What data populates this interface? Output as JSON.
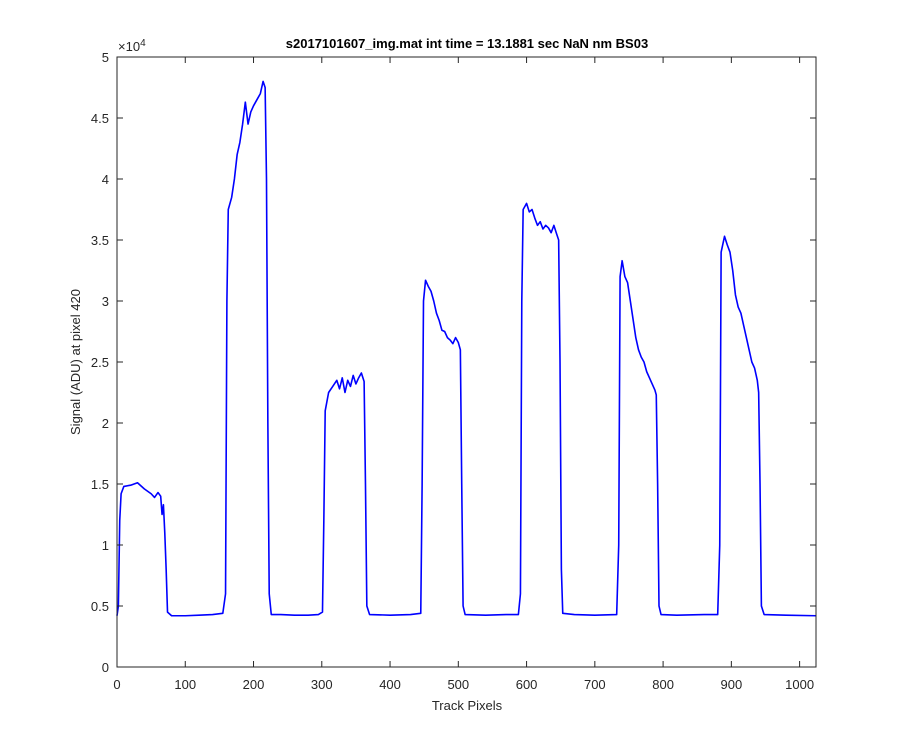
{
  "chart_data": {
    "type": "line",
    "title": "s2017101607_img.mat int time = 13.1881 sec  NaN nm BS03",
    "xlabel": "Track Pixels",
    "ylabel": "Signal (ADU) at pixel 420",
    "xlim": [
      0,
      1024
    ],
    "ylim": [
      0,
      50000
    ],
    "x_ticks": [
      0,
      100,
      200,
      300,
      400,
      500,
      600,
      700,
      800,
      900,
      1000
    ],
    "x_tick_labels": [
      "0",
      "100",
      "200",
      "300",
      "400",
      "500",
      "600",
      "700",
      "800",
      "900",
      "1000"
    ],
    "y_ticks": [
      0,
      5000,
      10000,
      15000,
      20000,
      25000,
      30000,
      35000,
      40000,
      45000,
      50000
    ],
    "y_tick_labels": [
      "0",
      "0.5",
      "1",
      "1.5",
      "2",
      "2.5",
      "3",
      "3.5",
      "4",
      "4.5",
      "5"
    ],
    "y_exponent_label": "×10",
    "y_exponent_power": "4",
    "grid": false,
    "series": [
      {
        "color": "#0000ff",
        "points": [
          [
            0,
            4200
          ],
          [
            2,
            5000
          ],
          [
            4,
            12000
          ],
          [
            6,
            14200
          ],
          [
            10,
            14800
          ],
          [
            20,
            14900
          ],
          [
            30,
            15100
          ],
          [
            40,
            14600
          ],
          [
            50,
            14200
          ],
          [
            55,
            13900
          ],
          [
            60,
            14300
          ],
          [
            64,
            14000
          ],
          [
            66,
            12500
          ],
          [
            68,
            13300
          ],
          [
            70,
            11000
          ],
          [
            72,
            8000
          ],
          [
            74,
            4500
          ],
          [
            80,
            4200
          ],
          [
            100,
            4200
          ],
          [
            120,
            4250
          ],
          [
            140,
            4300
          ],
          [
            155,
            4400
          ],
          [
            159,
            6000
          ],
          [
            161,
            30000
          ],
          [
            163,
            37500
          ],
          [
            168,
            38500
          ],
          [
            172,
            40000
          ],
          [
            176,
            42000
          ],
          [
            180,
            43000
          ],
          [
            184,
            44500
          ],
          [
            188,
            46300
          ],
          [
            192,
            44500
          ],
          [
            196,
            45500
          ],
          [
            200,
            46000
          ],
          [
            205,
            46500
          ],
          [
            210,
            47000
          ],
          [
            214,
            48000
          ],
          [
            217,
            47500
          ],
          [
            219,
            40000
          ],
          [
            221,
            20000
          ],
          [
            223,
            6000
          ],
          [
            226,
            4300
          ],
          [
            240,
            4300
          ],
          [
            260,
            4250
          ],
          [
            280,
            4250
          ],
          [
            295,
            4300
          ],
          [
            301,
            4500
          ],
          [
            303,
            12000
          ],
          [
            305,
            21000
          ],
          [
            310,
            22500
          ],
          [
            316,
            23000
          ],
          [
            322,
            23500
          ],
          [
            326,
            22800
          ],
          [
            330,
            23700
          ],
          [
            334,
            22500
          ],
          [
            338,
            23500
          ],
          [
            342,
            23000
          ],
          [
            346,
            23900
          ],
          [
            350,
            23200
          ],
          [
            354,
            23700
          ],
          [
            358,
            24100
          ],
          [
            362,
            23400
          ],
          [
            364,
            15000
          ],
          [
            366,
            5000
          ],
          [
            370,
            4300
          ],
          [
            400,
            4250
          ],
          [
            430,
            4300
          ],
          [
            445,
            4400
          ],
          [
            447,
            15000
          ],
          [
            449,
            30000
          ],
          [
            452,
            31700
          ],
          [
            456,
            31200
          ],
          [
            460,
            30800
          ],
          [
            464,
            30000
          ],
          [
            468,
            29000
          ],
          [
            472,
            28400
          ],
          [
            476,
            27600
          ],
          [
            480,
            27500
          ],
          [
            484,
            27000
          ],
          [
            488,
            26800
          ],
          [
            492,
            26500
          ],
          [
            496,
            27000
          ],
          [
            500,
            26600
          ],
          [
            503,
            26000
          ],
          [
            505,
            15000
          ],
          [
            507,
            5000
          ],
          [
            510,
            4300
          ],
          [
            540,
            4250
          ],
          [
            570,
            4300
          ],
          [
            588,
            4300
          ],
          [
            591,
            6000
          ],
          [
            593,
            30000
          ],
          [
            595,
            37500
          ],
          [
            600,
            38000
          ],
          [
            604,
            37300
          ],
          [
            608,
            37500
          ],
          [
            612,
            36800
          ],
          [
            616,
            36200
          ],
          [
            620,
            36500
          ],
          [
            624,
            35900
          ],
          [
            628,
            36200
          ],
          [
            632,
            36000
          ],
          [
            636,
            35600
          ],
          [
            640,
            36200
          ],
          [
            644,
            35500
          ],
          [
            647,
            35000
          ],
          [
            649,
            25000
          ],
          [
            651,
            8000
          ],
          [
            653,
            4400
          ],
          [
            670,
            4300
          ],
          [
            700,
            4250
          ],
          [
            732,
            4300
          ],
          [
            735,
            10000
          ],
          [
            737,
            32000
          ],
          [
            740,
            33300
          ],
          [
            744,
            32000
          ],
          [
            748,
            31500
          ],
          [
            752,
            30000
          ],
          [
            756,
            28500
          ],
          [
            760,
            27000
          ],
          [
            764,
            26000
          ],
          [
            768,
            25400
          ],
          [
            772,
            25000
          ],
          [
            776,
            24200
          ],
          [
            780,
            23700
          ],
          [
            784,
            23200
          ],
          [
            788,
            22700
          ],
          [
            790,
            22300
          ],
          [
            792,
            15000
          ],
          [
            794,
            5000
          ],
          [
            797,
            4300
          ],
          [
            820,
            4250
          ],
          [
            860,
            4300
          ],
          [
            880,
            4300
          ],
          [
            883,
            10000
          ],
          [
            885,
            34000
          ],
          [
            890,
            35300
          ],
          [
            894,
            34600
          ],
          [
            898,
            34000
          ],
          [
            902,
            32500
          ],
          [
            906,
            30500
          ],
          [
            910,
            29500
          ],
          [
            914,
            29000
          ],
          [
            918,
            28000
          ],
          [
            922,
            27000
          ],
          [
            926,
            26000
          ],
          [
            930,
            25000
          ],
          [
            934,
            24500
          ],
          [
            938,
            23500
          ],
          [
            940,
            22500
          ],
          [
            942,
            15000
          ],
          [
            944,
            5000
          ],
          [
            948,
            4300
          ],
          [
            980,
            4250
          ],
          [
            1024,
            4200
          ]
        ]
      }
    ],
    "colors": {
      "line": "#0000ff",
      "axes": "#262626",
      "background": "#ffffff"
    }
  }
}
